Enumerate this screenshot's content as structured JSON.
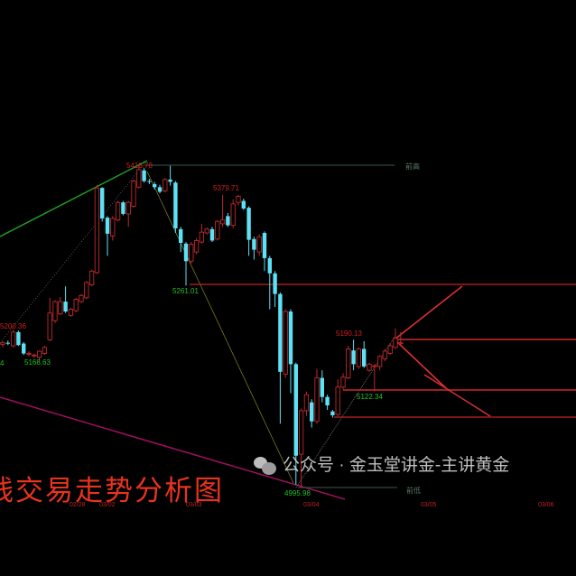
{
  "chart_data": {
    "type": "candlestick",
    "title": "",
    "ylim": [
      4960,
      5480
    ],
    "colors": {
      "up": "#c0282c",
      "down": "#5ee0f5",
      "background": "#000000"
    },
    "x_ticks": [
      "02/28",
      "03/02",
      "03/03",
      "03/04",
      "03/05",
      "03/06"
    ],
    "candles_ohlc": [
      [
        5184,
        5188,
        5180,
        5186
      ],
      [
        5186,
        5189,
        5183,
        5185
      ],
      [
        5182,
        5203,
        5180,
        5200
      ],
      [
        5200,
        5202,
        5182,
        5183
      ],
      [
        5185,
        5187,
        5170,
        5172
      ],
      [
        5172,
        5175,
        5168,
        5172
      ],
      [
        5170,
        5172,
        5166,
        5170
      ],
      [
        5167,
        5176,
        5163,
        5175
      ],
      [
        5172,
        5182,
        5170,
        5180
      ],
      [
        5190,
        5245,
        5188,
        5225
      ],
      [
        5215,
        5242,
        5212,
        5240
      ],
      [
        5224,
        5246,
        5222,
        5240
      ],
      [
        5240,
        5260,
        5225,
        5227
      ],
      [
        5222,
        5232,
        5220,
        5230
      ],
      [
        5228,
        5245,
        5226,
        5243
      ],
      [
        5240,
        5250,
        5238,
        5248
      ],
      [
        5245,
        5267,
        5243,
        5265
      ],
      [
        5262,
        5282,
        5260,
        5280
      ],
      [
        5278,
        5393,
        5276,
        5389
      ],
      [
        5389,
        5390,
        5345,
        5349
      ],
      [
        5350,
        5352,
        5300,
        5329
      ],
      [
        5326,
        5352,
        5320,
        5349
      ],
      [
        5347,
        5372,
        5345,
        5370
      ],
      [
        5370,
        5372,
        5353,
        5355
      ],
      [
        5355,
        5372,
        5338,
        5370
      ],
      [
        5365,
        5400,
        5363,
        5398
      ],
      [
        5390,
        5418.78,
        5388,
        5413
      ],
      [
        5412,
        5415,
        5396,
        5398
      ],
      [
        5398,
        5401,
        5394,
        5397
      ],
      [
        5394,
        5397,
        5387,
        5390
      ],
      [
        5390,
        5393,
        5382,
        5384
      ],
      [
        5385,
        5402,
        5383,
        5400
      ],
      [
        5400,
        5418,
        5392,
        5397
      ],
      [
        5396,
        5398,
        5330,
        5336
      ],
      [
        5335,
        5338,
        5305,
        5317
      ],
      [
        5316,
        5318,
        5261.01,
        5293
      ],
      [
        5293,
        5318,
        5290,
        5315
      ],
      [
        5305,
        5323,
        5302,
        5320
      ],
      [
        5318,
        5342,
        5316,
        5331
      ],
      [
        5330,
        5337,
        5328,
        5335
      ],
      [
        5335,
        5338,
        5318,
        5320
      ],
      [
        5322,
        5347,
        5320,
        5345
      ],
      [
        5342,
        5379.71,
        5338,
        5347
      ],
      [
        5352,
        5356,
        5338,
        5340
      ],
      [
        5340,
        5374,
        5336,
        5368
      ],
      [
        5370,
        5380,
        5366,
        5378
      ],
      [
        5372,
        5375,
        5360,
        5362
      ],
      [
        5363,
        5365,
        5300,
        5321
      ],
      [
        5322,
        5325,
        5295,
        5308
      ],
      [
        5305,
        5328,
        5300,
        5325
      ],
      [
        5330,
        5332,
        5280,
        5297
      ],
      [
        5297,
        5300,
        5230,
        5277
      ],
      [
        5277,
        5280,
        5233,
        5250
      ],
      [
        5250,
        5252,
        5080,
        5148
      ],
      [
        5145,
        5230,
        5140,
        5227
      ],
      [
        5227,
        5230,
        5120,
        5158
      ],
      [
        5158,
        5160,
        5000,
        5038
      ],
      [
        5040,
        5100,
        4995.98,
        5097
      ],
      [
        5097,
        5122,
        5090,
        5118
      ],
      [
        5108,
        5112,
        5075,
        5083
      ],
      [
        5083,
        5152,
        5080,
        5140
      ],
      [
        5140,
        5150,
        5108,
        5115
      ],
      [
        5115,
        5118,
        5098,
        5104
      ],
      [
        5096,
        5098,
        5088,
        5091
      ],
      [
        5092,
        5138,
        5090,
        5128
      ],
      [
        5128,
        5146,
        5125,
        5141
      ],
      [
        5140,
        5182,
        5138,
        5178
      ],
      [
        5176,
        5190.13,
        5150,
        5158
      ],
      [
        5155,
        5180,
        5152,
        5178
      ],
      [
        5178,
        5188,
        5153,
        5155
      ],
      [
        5150,
        5160,
        5148,
        5158
      ],
      [
        5156,
        5158,
        5122.34,
        5156
      ],
      [
        5155,
        5170,
        5150,
        5168
      ],
      [
        5165,
        5178,
        5162,
        5175
      ],
      [
        5172,
        5185,
        5170,
        5182
      ],
      [
        5180,
        5205,
        5178,
        5192
      ],
      [
        5186,
        5200,
        5184,
        5186
      ]
    ],
    "annotations": {
      "high_labels": [
        "5418.78",
        "5379.71",
        "5200.36",
        "5190.13"
      ],
      "low_labels": [
        "5261.01",
        "5168.63",
        "4",
        "5122.34",
        "4995.98"
      ],
      "prev_high_label": "前高",
      "prev_low_label": "前低"
    }
  },
  "overlay": {
    "title_text": "线交易走势分析图",
    "watermark": "公众号 · 金玉堂讲金-主讲黄金"
  }
}
